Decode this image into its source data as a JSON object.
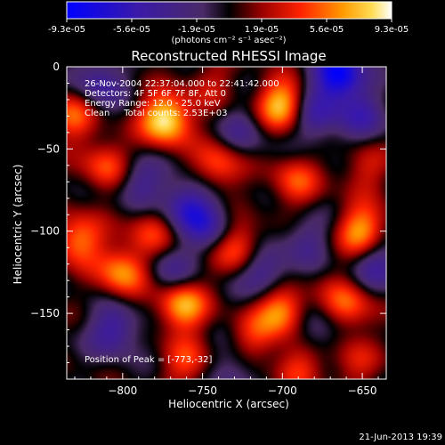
{
  "chart_data": {
    "type": "heatmap",
    "title": "Reconstructed RHESSI Image",
    "xlabel": "Heliocentric X (arcsec)",
    "ylabel": "Heliocentric Y (arcsec)",
    "xlim": [
      -835,
      -635
    ],
    "ylim": [
      -190,
      0
    ],
    "x_ticks": [
      -800,
      -750,
      -700,
      -650
    ],
    "y_ticks": [
      0,
      -50,
      -100,
      -150
    ],
    "colorbar": {
      "min": -9.3e-05,
      "max": 9.3e-05,
      "tick_labels": [
        "-9.3e-05",
        "-5.6e-05",
        "-1.9e-05",
        "1.9e-05",
        "5.6e-05",
        "9.3e-05"
      ],
      "unit_label": "(photons cm⁻² s⁻¹ asec⁻²)"
    },
    "annotations": [
      "26-Nov-2004 22:37:04.000 to 22:41:42.000",
      "Detectors: 4F 5F 6F 7F 8F, Att 0",
      "Energy Range: 12.0 - 25.0 keV",
      "Clean     Total counts: 2.53E+03"
    ],
    "peak_label": "Position of Peak = [-773,-32]",
    "peak": [
      -773,
      -32
    ],
    "sources": [
      {
        "x": -773,
        "y": -32,
        "value": 9.3e-05
      },
      {
        "x": -700,
        "y": -23,
        "value": 8e-05
      },
      {
        "x": -763,
        "y": -145,
        "value": 7.5e-05
      },
      {
        "x": -650,
        "y": -100,
        "value": 7e-05
      },
      {
        "x": -700,
        "y": -148,
        "value": 7e-05
      },
      {
        "x": -800,
        "y": -125,
        "value": 6.5e-05
      },
      {
        "x": -828,
        "y": -105,
        "value": 6e-05
      },
      {
        "x": -660,
        "y": -145,
        "value": 5.5e-05
      },
      {
        "x": -728,
        "y": -110,
        "value": 5.5e-05
      },
      {
        "x": -810,
        "y": -60,
        "value": 5e-05
      },
      {
        "x": -740,
        "y": -60,
        "value": 5e-05
      },
      {
        "x": -692,
        "y": -70,
        "value": 4.5e-05
      },
      {
        "x": -782,
        "y": -100,
        "value": 4e-05
      },
      {
        "x": -832,
        "y": -30,
        "value": 5e-05
      },
      {
        "x": -760,
        "y": -180,
        "value": 4e-05
      },
      {
        "x": -690,
        "y": -182,
        "value": 4e-05
      },
      {
        "x": -718,
        "y": -165,
        "value": 3.5e-05
      },
      {
        "x": -648,
        "y": -62,
        "value": 3e-05
      },
      {
        "x": -655,
        "y": -180,
        "value": 3e-05
      },
      {
        "x": -745,
        "y": -10,
        "value": 2.5e-05
      },
      {
        "x": -665,
        "y": -5,
        "value": -9.3e-05
      },
      {
        "x": -680,
        "y": -30,
        "value": -5e-05
      },
      {
        "x": -760,
        "y": -85,
        "value": -6e-05
      },
      {
        "x": -745,
        "y": -98,
        "value": -4e-05
      },
      {
        "x": -712,
        "y": -125,
        "value": -5e-05
      },
      {
        "x": -790,
        "y": -70,
        "value": -4e-05
      },
      {
        "x": -815,
        "y": -10,
        "value": -4.5e-05
      },
      {
        "x": -805,
        "y": -160,
        "value": -5e-05
      },
      {
        "x": -770,
        "y": -125,
        "value": -3.5e-05
      },
      {
        "x": -685,
        "y": -105,
        "value": -3e-05
      },
      {
        "x": -640,
        "y": -120,
        "value": -4.5e-05
      },
      {
        "x": -725,
        "y": -40,
        "value": -3e-05
      },
      {
        "x": -650,
        "y": -30,
        "value": -4e-05
      },
      {
        "x": -730,
        "y": -185,
        "value": -3e-05
      },
      {
        "x": -680,
        "y": -160,
        "value": -3.5e-05
      }
    ]
  },
  "footer": {
    "timestamp": "21-Jun-2013 19:39"
  }
}
